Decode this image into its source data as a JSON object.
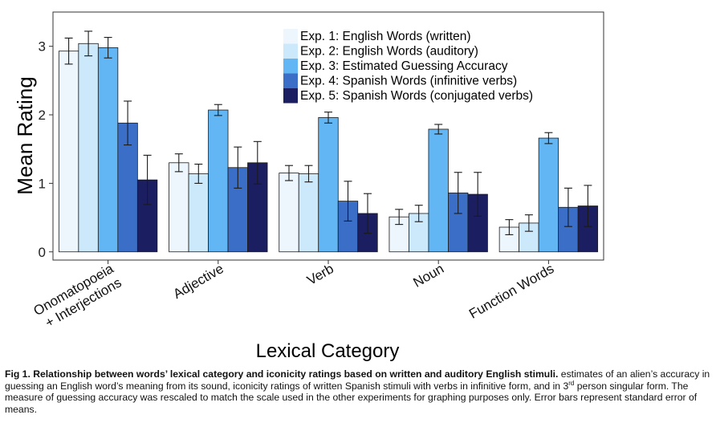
{
  "chart_data": {
    "type": "bar",
    "xlabel": "Lexical Category",
    "ylabel": "Mean Rating",
    "ylim": [
      -0.12,
      3.5
    ],
    "yticks": [
      0,
      1,
      2,
      3
    ],
    "grid": false,
    "legend_position": "top-right (inside)",
    "error_bars": "standard error of means",
    "categories": [
      "Onomatopoeia\n+ Interjections",
      "Adjective",
      "Verb",
      "Noun",
      "Function Words"
    ],
    "series": [
      {
        "name": "Exp. 1: English Words (written)",
        "color": "#eef6fd",
        "values": [
          2.93,
          1.3,
          1.15,
          0.51,
          0.36
        ],
        "errors": [
          0.19,
          0.13,
          0.11,
          0.11,
          0.11
        ]
      },
      {
        "name": "Exp. 2: English Words (auditory)",
        "color": "#cce8fb",
        "values": [
          3.04,
          1.14,
          1.14,
          0.56,
          0.42
        ],
        "errors": [
          0.18,
          0.14,
          0.12,
          0.12,
          0.12
        ]
      },
      {
        "name": "Exp. 3: Estimated Guessing Accuracy",
        "color": "#62b6f4",
        "values": [
          2.98,
          2.07,
          1.96,
          1.79,
          1.66
        ],
        "errors": [
          0.15,
          0.08,
          0.08,
          0.07,
          0.08
        ]
      },
      {
        "name": "Exp. 4: Spanish Words (infinitive verbs)",
        "color": "#3b6ec6",
        "values": [
          1.88,
          1.23,
          0.74,
          0.86,
          0.65
        ],
        "errors": [
          0.32,
          0.3,
          0.29,
          0.3,
          0.28
        ]
      },
      {
        "name": "Exp. 5: Spanish Words (conjugated verbs)",
        "color": "#1c1e62",
        "values": [
          1.05,
          1.3,
          0.56,
          0.84,
          0.67
        ],
        "errors": [
          0.36,
          0.31,
          0.29,
          0.32,
          0.3
        ]
      }
    ]
  },
  "caption": {
    "title": "Fig 1. Relationship between words’ lexical category and iconicity ratings based on written and auditory English stimuli.",
    "body_before_sup": " estimates of an alien’s accuracy in guessing an English word’s meaning from its sound, iconicity ratings of written Spanish stimuli with verbs in infinitive form, and in 3",
    "sup": "rd",
    "body_after_sup": " person singular form. The measure of guessing accuracy was rescaled to match the scale used in the other experiments for graphing purposes only. Error bars represent standard error of means."
  }
}
